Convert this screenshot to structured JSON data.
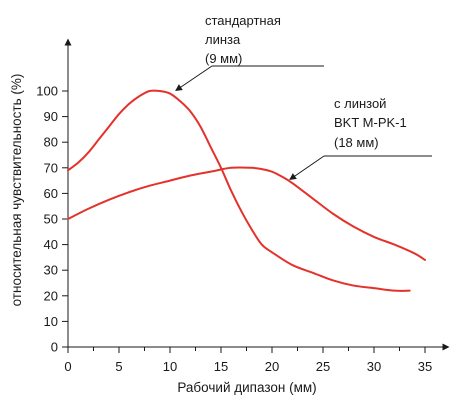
{
  "chart_data": {
    "type": "line",
    "xlabel": "Рабочий дипазон (мм)",
    "ylabel": "относительная чувствительность (%)",
    "xlim": [
      0,
      35
    ],
    "ylim": [
      0,
      100
    ],
    "x_ticks": [
      "0",
      "5",
      "10",
      "15",
      "20",
      "25",
      "30",
      "35"
    ],
    "y_ticks": [
      "0",
      "10",
      "20",
      "30",
      "40",
      "50",
      "60",
      "70",
      "80",
      "90",
      "100"
    ],
    "grid": false,
    "line_color": "#e4322b",
    "series": [
      {
        "annotation": [
          "стандартная",
          "линза",
          "(9  мм)"
        ],
        "x": [
          0,
          1,
          2,
          3,
          4,
          5,
          6,
          7,
          8,
          9,
          10,
          11,
          12,
          13,
          14,
          15,
          16,
          17,
          18,
          19,
          20,
          22,
          24,
          26,
          28,
          30,
          32,
          33.5
        ],
        "y": [
          69,
          72,
          76,
          81,
          86,
          91,
          95,
          98,
          100,
          100,
          99,
          96,
          92,
          86,
          78,
          70,
          61,
          53,
          46,
          40,
          37,
          32,
          29,
          26,
          24,
          23,
          22,
          22
        ]
      },
      {
        "annotation": [
          "с линзой",
          "BKT M-PK-1",
          "(18 мм)"
        ],
        "x": [
          0,
          2,
          4,
          6,
          8,
          10,
          12,
          14,
          16,
          18,
          19,
          20,
          21,
          22,
          24,
          26,
          28,
          30,
          32,
          34,
          35
        ],
        "y": [
          50,
          54,
          57.5,
          60.5,
          63,
          65,
          67,
          68.5,
          70,
          70,
          69.5,
          68.5,
          66.5,
          64,
          58,
          52,
          47,
          43,
          40,
          36.5,
          34
        ]
      }
    ]
  }
}
